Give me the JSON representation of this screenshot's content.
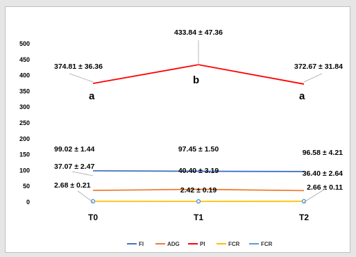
{
  "chart_data": {
    "type": "line",
    "categories": [
      "T0",
      "T1",
      "T2"
    ],
    "ylim": [
      0,
      500
    ],
    "yticks": [
      0,
      50,
      100,
      150,
      200,
      250,
      300,
      350,
      400,
      450,
      500
    ],
    "grid": false,
    "legend_position": "bottom",
    "series": [
      {
        "name": "FI",
        "color": "#4472c4",
        "values": [
          99.02,
          97.45,
          96.58
        ],
        "labels": [
          "99.02 ± 1.44",
          "97.45 ± 1.50",
          "96.58 ± 4.21"
        ]
      },
      {
        "name": "ADG",
        "color": "#ed7d31",
        "values": [
          37.07,
          40.4,
          36.4
        ],
        "labels": [
          "37.07 ± 2.47",
          "40.40 ± 3.19",
          "36.40 ± 2.64"
        ]
      },
      {
        "name": "PI",
        "color": "#ff0000",
        "values": [
          374.81,
          433.84,
          372.67
        ],
        "labels": [
          "374.81 ± 36.36",
          "433.84 ± 47.36",
          "372.67 ± 31.84"
        ],
        "letters": [
          "a",
          "b",
          "a"
        ]
      },
      {
        "name": "FCR",
        "color": "#ffc000",
        "values": [
          2.68,
          2.42,
          2.66
        ],
        "labels": [
          "2.68 ± 0.21",
          "2.42 ± 0.19",
          "2.66 ± 0.11"
        ]
      },
      {
        "name": "FCR",
        "color": "#5b9bd5",
        "values": [
          2.68,
          2.42,
          2.66
        ],
        "marker": "circle"
      }
    ]
  }
}
